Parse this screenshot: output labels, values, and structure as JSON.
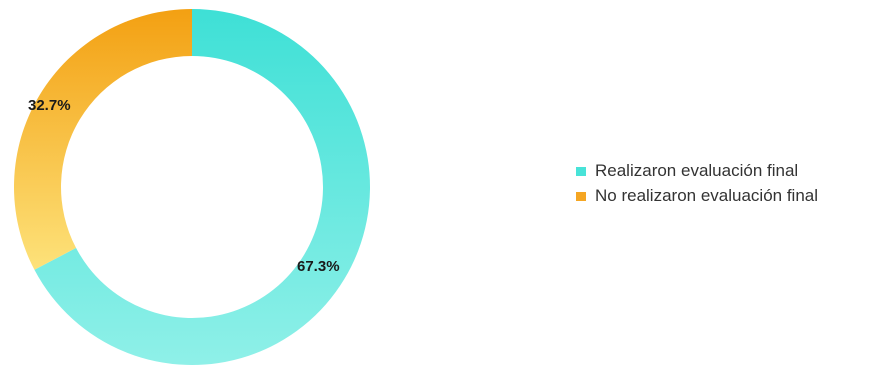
{
  "chart_data": {
    "type": "pie",
    "donut": true,
    "categories": [
      "Realizaron evaluación final",
      "No realizaron evaluación final"
    ],
    "values": [
      67.3,
      32.7
    ],
    "labels": [
      "67.3%",
      "32.7%"
    ],
    "colors": [
      "#48e3d8",
      "#f5a623"
    ],
    "legend_placement": "right"
  }
}
